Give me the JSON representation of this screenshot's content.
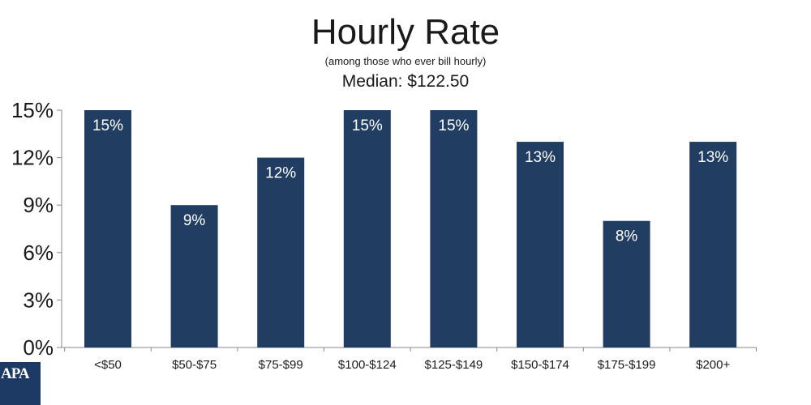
{
  "chart_data": {
    "type": "bar",
    "title": "Hourly Rate",
    "subtitle": "(among those who ever bill hourly)",
    "annotation": "Median: $122.50",
    "categories": [
      "<$50",
      "$50-$75",
      "$75-$99",
      "$100-$124",
      "$125-$149",
      "$150-$174",
      "$175-$199",
      "$200+"
    ],
    "values": [
      15,
      9,
      12,
      15,
      15,
      13,
      8,
      13
    ],
    "data_labels": [
      "15%",
      "9%",
      "12%",
      "15%",
      "15%",
      "13%",
      "8%",
      "13%"
    ],
    "y_ticks": [
      0,
      3,
      6,
      9,
      12,
      15
    ],
    "y_tick_labels": [
      "0%",
      "3%",
      "6%",
      "9%",
      "12%",
      "15%"
    ],
    "ylim": [
      0,
      15
    ],
    "xlabel": "",
    "ylabel": "",
    "grid": false,
    "bar_color": "#213e62",
    "label_color": "#ffffff"
  },
  "logo": {
    "text": "APA",
    "color": "#1c3a64"
  }
}
